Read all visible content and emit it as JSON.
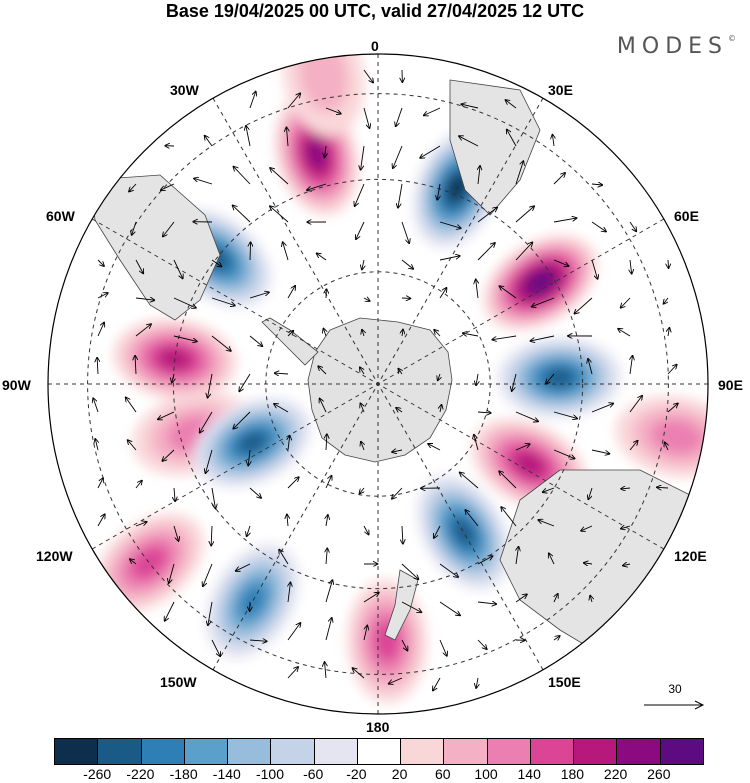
{
  "title": "Base 19/04/2025 00 UTC, valid 27/04/2025 12 UTC",
  "brand": "MODES",
  "brand_mark": "©",
  "longitude_labels": {
    "top": "0",
    "bottom": "180",
    "left": "90W",
    "right": "90E",
    "nw_upper": "30W",
    "nw_lower": "60W",
    "ne_upper": "30E",
    "ne_lower": "60E",
    "sw_upper": "120W",
    "sw_lower": "150W",
    "se_upper": "120E",
    "se_lower": "150E"
  },
  "reference_vector": {
    "label": "30",
    "icon": "arrow-right-icon"
  },
  "colorbar": {
    "colors": [
      "#0d2f4d",
      "#1a5a86",
      "#2d7fb5",
      "#5b9fcb",
      "#97bcdc",
      "#c5d3e8",
      "#e5e5f2",
      "#ffffff",
      "#f9d7d9",
      "#f4b0c4",
      "#eb7fb1",
      "#dc4596",
      "#b6187c",
      "#8c0a80",
      "#5e0a80"
    ],
    "tick_labels": [
      "-260",
      "-220",
      "-180",
      "-140",
      "-100",
      "-60",
      "-20",
      "20",
      "60",
      "100",
      "140",
      "180",
      "220",
      "260"
    ]
  },
  "projection": "south-polar-stereographic",
  "anomalies": [
    {
      "lon": -15,
      "r": 0.72,
      "v": 200
    },
    {
      "lon": 22,
      "r": 0.64,
      "v": -240
    },
    {
      "lon": 58,
      "r": 0.58,
      "v": 240
    },
    {
      "lon": 88,
      "r": 0.55,
      "v": -220
    },
    {
      "lon": 118,
      "r": 0.52,
      "v": 180
    },
    {
      "lon": 150,
      "r": 0.52,
      "v": -200
    },
    {
      "lon": 178,
      "r": 0.78,
      "v": 140
    },
    {
      "lon": -150,
      "r": 0.76,
      "v": -180
    },
    {
      "lon": -128,
      "r": 0.88,
      "v": 120
    },
    {
      "lon": -105,
      "r": 0.58,
      "v": 100
    },
    {
      "lon": -115,
      "r": 0.42,
      "v": -200
    },
    {
      "lon": -83,
      "r": 0.62,
      "v": 180
    },
    {
      "lon": -52,
      "r": 0.62,
      "v": -200
    },
    {
      "lon": 100,
      "r": 0.92,
      "v": 80
    },
    {
      "lon": -10,
      "r": 0.95,
      "v": 60
    }
  ]
}
